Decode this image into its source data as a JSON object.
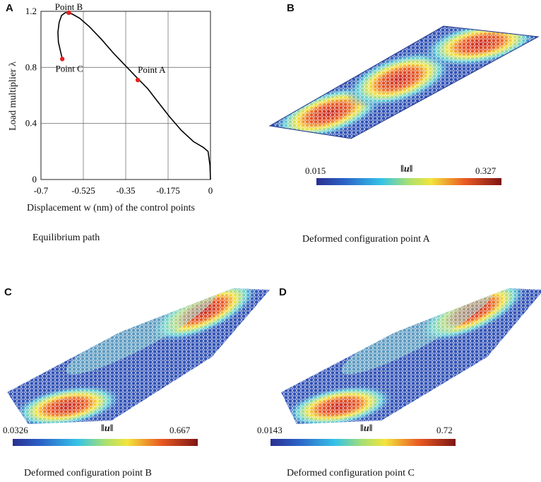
{
  "panels": {
    "A": {
      "letter": "A",
      "caption": "Equilibrium path"
    },
    "B": {
      "letter": "B",
      "caption": "Deformed configuration point A",
      "colorbar": {
        "min": "0.015",
        "max": "0.327",
        "label": "‖u‖"
      }
    },
    "C": {
      "letter": "C",
      "caption": "Deformed configuration point B",
      "colorbar": {
        "min": "0.0326",
        "max": "0.667",
        "label": "‖u‖"
      }
    },
    "D": {
      "letter": "D",
      "caption": "Deformed configuration point C",
      "colorbar": {
        "min": "0.0143",
        "max": "0.72",
        "label": "‖u‖"
      }
    }
  },
  "chart_data": {
    "type": "line",
    "title": "Equilibrium path",
    "xlabel": "Displacement w (nm) of the control points",
    "ylabel": "Load multiplier λ",
    "xlim": [
      -0.7,
      0
    ],
    "ylim": [
      0,
      1.2
    ],
    "xticks": [
      -0.7,
      -0.525,
      -0.35,
      -0.175,
      0
    ],
    "xtick_labels": [
      "-0.7",
      "-0.525",
      "-0.35",
      "-0.175",
      "0"
    ],
    "yticks": [
      0,
      0.4,
      0.8,
      1.2
    ],
    "ytick_labels": [
      "0",
      "0.4",
      "0.8",
      "1.2"
    ],
    "grid": true,
    "series": [
      {
        "name": "equilibrium path",
        "x": [
          0,
          -0.002,
          -0.01,
          -0.03,
          -0.07,
          -0.12,
          -0.17,
          -0.22,
          -0.26,
          -0.3,
          -0.35,
          -0.4,
          -0.45,
          -0.5,
          -0.54,
          -0.57,
          -0.585,
          -0.6,
          -0.615,
          -0.625,
          -0.63,
          -0.628,
          -0.62,
          -0.612
        ],
        "y": [
          0,
          0.1,
          0.2,
          0.23,
          0.27,
          0.35,
          0.45,
          0.56,
          0.65,
          0.72,
          0.81,
          0.9,
          1.0,
          1.09,
          1.15,
          1.18,
          1.19,
          1.19,
          1.17,
          1.12,
          1.05,
          0.98,
          0.92,
          0.86
        ]
      }
    ],
    "points": [
      {
        "name": "Point A",
        "x": -0.3,
        "y": 0.71
      },
      {
        "name": "Point B",
        "x": -0.585,
        "y": 1.19
      },
      {
        "name": "Point C",
        "x": -0.612,
        "y": 0.86
      }
    ]
  }
}
